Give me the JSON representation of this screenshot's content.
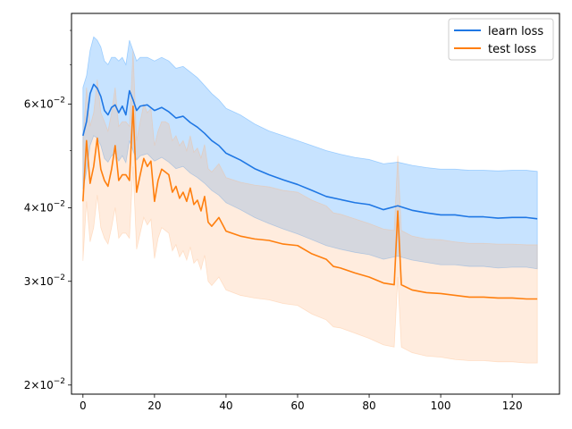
{
  "chart_data": {
    "type": "line",
    "title": "",
    "xlabel": "",
    "ylabel": "",
    "yscale": "log",
    "xlim": [
      -3.2,
      133.2
    ],
    "ylim": [
      0.0193,
      0.0855
    ],
    "xticks": [
      0,
      20,
      40,
      60,
      80,
      100,
      120
    ],
    "xtick_labels": [
      "0",
      "20",
      "40",
      "60",
      "80",
      "100",
      "120"
    ],
    "yticks": [
      0.02,
      0.03,
      0.04,
      0.06
    ],
    "ytick_labels": [
      {
        "base": "2",
        "exp": "−2"
      },
      {
        "base": "3",
        "exp": "−2"
      },
      {
        "base": "4",
        "exp": "−2"
      },
      {
        "base": "6",
        "exp": "−2"
      }
    ],
    "legend": {
      "position": "top-right",
      "entries": [
        "learn loss",
        "test loss"
      ]
    },
    "series": [
      {
        "name": "learn loss",
        "color": "#1f77e4",
        "band_color": "#1f8fff",
        "x": [
          0,
          1,
          2,
          3,
          4,
          5,
          6,
          7,
          8,
          9,
          10,
          11,
          12,
          13,
          14,
          15,
          16,
          18,
          20,
          22,
          24,
          26,
          28,
          30,
          32,
          34,
          36,
          38,
          40,
          44,
          48,
          52,
          56,
          60,
          64,
          68,
          72,
          76,
          80,
          84,
          88,
          92,
          96,
          100,
          104,
          108,
          112,
          116,
          120,
          124,
          127
        ],
        "mean": [
          0.053,
          0.056,
          0.0625,
          0.0648,
          0.0638,
          0.0618,
          0.0585,
          0.0575,
          0.0592,
          0.0598,
          0.058,
          0.0595,
          0.0575,
          0.0632,
          0.061,
          0.0585,
          0.0595,
          0.0598,
          0.0585,
          0.0592,
          0.0582,
          0.0568,
          0.0572,
          0.0558,
          0.0548,
          0.0535,
          0.052,
          0.051,
          0.0495,
          0.0482,
          0.0466,
          0.0455,
          0.0446,
          0.0438,
          0.0428,
          0.0418,
          0.0413,
          0.0408,
          0.0405,
          0.0397,
          0.0403,
          0.0396,
          0.0392,
          0.0389,
          0.0389,
          0.0386,
          0.0386,
          0.0384,
          0.0385,
          0.0385,
          0.0383
        ],
        "upper": [
          0.064,
          0.067,
          0.074,
          0.078,
          0.077,
          0.075,
          0.071,
          0.07,
          0.072,
          0.072,
          0.071,
          0.072,
          0.07,
          0.077,
          0.074,
          0.071,
          0.072,
          0.072,
          0.071,
          0.072,
          0.071,
          0.069,
          0.0695,
          0.068,
          0.0665,
          0.0645,
          0.0625,
          0.061,
          0.059,
          0.0575,
          0.0555,
          0.054,
          0.053,
          0.052,
          0.051,
          0.05,
          0.0493,
          0.0487,
          0.0483,
          0.0475,
          0.0478,
          0.0472,
          0.0468,
          0.0465,
          0.0465,
          0.0463,
          0.0463,
          0.0462,
          0.0463,
          0.0463,
          0.0461
        ],
        "lower": [
          0.043,
          0.046,
          0.051,
          0.053,
          0.0525,
          0.051,
          0.0485,
          0.0478,
          0.049,
          0.0495,
          0.048,
          0.049,
          0.0477,
          0.052,
          0.05,
          0.0482,
          0.049,
          0.0494,
          0.048,
          0.0487,
          0.0478,
          0.0466,
          0.047,
          0.0458,
          0.045,
          0.044,
          0.0428,
          0.042,
          0.0408,
          0.0397,
          0.0385,
          0.0376,
          0.0368,
          0.0361,
          0.0353,
          0.0345,
          0.034,
          0.0336,
          0.0333,
          0.0327,
          0.0331,
          0.0326,
          0.0323,
          0.032,
          0.032,
          0.0318,
          0.0318,
          0.0316,
          0.0317,
          0.0317,
          0.0315
        ]
      },
      {
        "name": "test loss",
        "color": "#ff7f0e",
        "band_color": "#ffb57a",
        "x": [
          0,
          1,
          2,
          3,
          4,
          5,
          6,
          7,
          8,
          9,
          10,
          11,
          12,
          13,
          14,
          15,
          16,
          17,
          18,
          19,
          20,
          21,
          22,
          23,
          24,
          25,
          26,
          27,
          28,
          29,
          30,
          31,
          32,
          33,
          34,
          35,
          36,
          38,
          40,
          44,
          48,
          52,
          56,
          60,
          64,
          68,
          70,
          72,
          76,
          80,
          84,
          87,
          88,
          89,
          92,
          96,
          100,
          104,
          108,
          112,
          116,
          120,
          124,
          127
        ],
        "mean": [
          0.041,
          0.052,
          0.044,
          0.047,
          0.0525,
          0.0465,
          0.0445,
          0.0435,
          0.0465,
          0.051,
          0.0445,
          0.0455,
          0.0455,
          0.0445,
          0.0595,
          0.0425,
          0.0455,
          0.0485,
          0.047,
          0.048,
          0.041,
          0.0445,
          0.0465,
          0.046,
          0.0455,
          0.0425,
          0.0435,
          0.0415,
          0.0425,
          0.041,
          0.0432,
          0.0405,
          0.0412,
          0.0395,
          0.0418,
          0.0378,
          0.0372,
          0.0385,
          0.0365,
          0.0358,
          0.0354,
          0.0352,
          0.0347,
          0.0345,
          0.0334,
          0.0327,
          0.0318,
          0.0316,
          0.031,
          0.0305,
          0.0298,
          0.0296,
          0.0395,
          0.0296,
          0.029,
          0.0287,
          0.0286,
          0.0284,
          0.0282,
          0.0282,
          0.0281,
          0.0281,
          0.028,
          0.028
        ],
        "upper": [
          0.052,
          0.064,
          0.055,
          0.058,
          0.066,
          0.058,
          0.056,
          0.054,
          0.058,
          0.064,
          0.055,
          0.056,
          0.056,
          0.055,
          0.074,
          0.052,
          0.056,
          0.06,
          0.058,
          0.059,
          0.051,
          0.054,
          0.056,
          0.056,
          0.0555,
          0.052,
          0.053,
          0.051,
          0.052,
          0.05,
          0.053,
          0.0497,
          0.0505,
          0.0486,
          0.0512,
          0.0466,
          0.046,
          0.0475,
          0.045,
          0.0442,
          0.0437,
          0.0434,
          0.0428,
          0.0425,
          0.0412,
          0.0403,
          0.0392,
          0.039,
          0.0383,
          0.0376,
          0.0368,
          0.0366,
          0.049,
          0.0366,
          0.0358,
          0.0354,
          0.0353,
          0.035,
          0.0348,
          0.0348,
          0.0347,
          0.0347,
          0.0346,
          0.0346
        ],
        "lower": [
          0.0325,
          0.041,
          0.035,
          0.037,
          0.042,
          0.037,
          0.0355,
          0.0347,
          0.037,
          0.04,
          0.0355,
          0.0362,
          0.0362,
          0.0355,
          0.047,
          0.034,
          0.0362,
          0.0385,
          0.0374,
          0.0382,
          0.0328,
          0.0355,
          0.037,
          0.0366,
          0.0362,
          0.0338,
          0.0346,
          0.033,
          0.0338,
          0.0326,
          0.0343,
          0.0322,
          0.0327,
          0.0314,
          0.0332,
          0.03,
          0.0295,
          0.0305,
          0.029,
          0.0284,
          0.0281,
          0.0279,
          0.0275,
          0.0273,
          0.0264,
          0.0258,
          0.0251,
          0.025,
          0.0245,
          0.024,
          0.0234,
          0.0232,
          0.0305,
          0.0232,
          0.0227,
          0.0224,
          0.0223,
          0.0221,
          0.022,
          0.022,
          0.0219,
          0.0219,
          0.0218,
          0.0218
        ]
      }
    ]
  }
}
